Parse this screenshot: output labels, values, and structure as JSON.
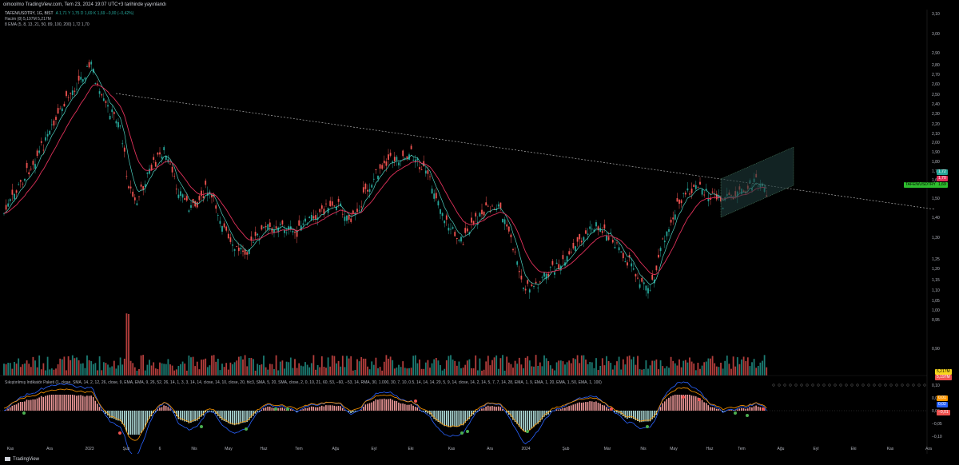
{
  "header": {
    "publish_line": "oimoolmo TradingView.com, Tem 23, 2024 19:07 UTC+3 tarihinde yayınlandı"
  },
  "legend": {
    "title": "TAFEN/USDTRY, 1G, BIST",
    "ohlc": "A 1,71 Y 1,75 D 1,69 K 1,69 −0,00 (−0,42%)",
    "volume": "Hacim (8) 5,197M 5,217M",
    "ema": "8 EMA (5, 8, 13, 21, 50, 89, 100, 200) 1,72 1,70",
    "oscillator": "Sıkıştırılmış İndikatör Paketi (1, close, SMA, 14, 2, 12, 26, close, 9, EMA, EMA, 9, 26, 52, 26, 14, 1, 3, 3, 14, 14, close, 14, 10, close, 20, hlc3, SMA, 5, 20, SMA, close, 2, 0, 10, 21, 60, 53, −60, −53, 14, RMA, 30, 1.000, 30, 7, 10, 0.5, 14, 14, 14, 20, 5, 9, 14, close, 14, 2, 14, 5, 7, 7, 14, 28, EMA, 1, 9, EMA, 1, 20, EMA, 1, 50, EMA, 1, 100)"
  },
  "price_axis": {
    "ticks": [
      "3,10",
      "3,00",
      "2,90",
      "2,80",
      "2,70",
      "2,60",
      "2,50",
      "2,40",
      "2,30",
      "2,20",
      "2,10",
      "2,00",
      "1,90",
      "1,80",
      "1,70",
      "1,60",
      "1,50",
      "1,40",
      "1,30",
      "1,25",
      "1,20",
      "1,15",
      "1,10",
      "1,05",
      "1,00",
      "0,95",
      "0,90"
    ],
    "tag_symbol": "TAFEN/USDTRY",
    "tag_price": "1,69",
    "tag_high": "1,72",
    "tag_mid": "1,70",
    "tag_vol1": "5,217M",
    "tag_vol2": "5,197M"
  },
  "osc_axis": {
    "ticks": [
      "0,10",
      "0,05",
      "0,00",
      "−0,05",
      "−0,10"
    ],
    "tag1": "0,01",
    "tag2": "0,02",
    "tag3": "−0,01"
  },
  "time_axis": {
    "labels": [
      "Kas",
      "Ara",
      "2023",
      "Şub",
      "6",
      "Nis",
      "May",
      "Haz",
      "Tem",
      "Ağu",
      "Eyl",
      "Eki",
      "Kas",
      "Ara",
      "2024",
      "Şub",
      "Mar",
      "Nis",
      "May",
      "Haz",
      "Tem",
      "Ağu",
      "Eyl",
      "Eki",
      "Kas",
      "Ara"
    ]
  },
  "footer": {
    "brand": "TradingView"
  },
  "colors": {
    "up": "#26a69a",
    "down": "#ef5350",
    "ema_fast": "#4dd0c0",
    "ema_slow": "#e0315a",
    "background": "#000000",
    "channel_fill": "#1e3a3a"
  }
}
